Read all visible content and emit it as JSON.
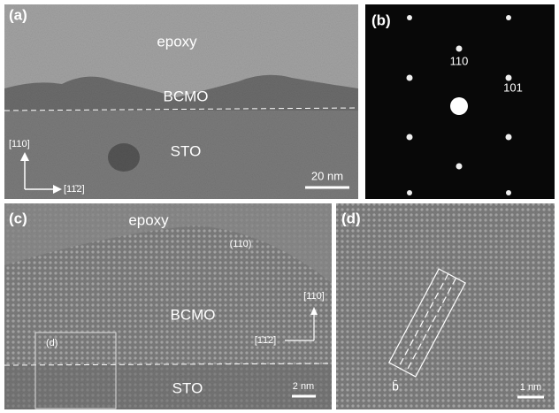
{
  "panels": [
    {
      "label": "(a)",
      "annotations": [
        "epoxy",
        "BCMO",
        "STO",
        "[110]",
        "[11̄2]",
        "20 nm"
      ]
    },
    {
      "label": "(b)",
      "annotations": [
        "110",
        "101"
      ]
    },
    {
      "label": "(c)",
      "annotations": [
        "epoxy",
        "(110)",
        "[110]",
        "BCMO",
        "[1̄1̄2]",
        "(d)",
        "STO",
        "2 nm"
      ]
    },
    {
      "label": "(d)",
      "annotations": [
        "b̄",
        "1 nm"
      ]
    }
  ]
}
